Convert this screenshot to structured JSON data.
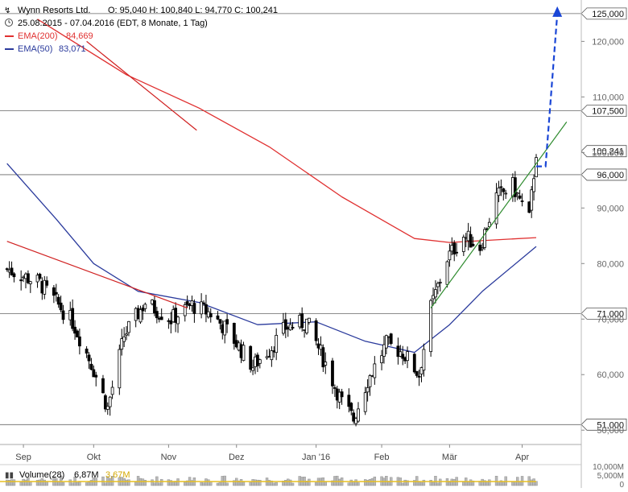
{
  "header": {
    "symbol": "Wynn Resorts Ltd.",
    "ohlc": "O: 95,040  H: 100,840  L: 94,770  C: 100,241",
    "period": "25.08.2015 - 07.04.2016 (EDT, 8 Monate, 1 Tag)",
    "ema200_label": "EMA(200)",
    "ema200_value": "84,669",
    "ema50_label": "EMA(50)",
    "ema50_value": "83,071",
    "volume_label": "Volume(28)",
    "volume_value": "6,87M",
    "volume_avg": "3,67M"
  },
  "colors": {
    "candle": "#000000",
    "ema200": "#e03030",
    "ema50": "#2a3a9c",
    "trend_up": "#2e8b2e",
    "trend_down": "#d02020",
    "forecast": "#1a46d6",
    "hline": "#666666",
    "volume_bar": "#b8b8b8",
    "volume_avg": "#e8c020"
  },
  "chart_data": {
    "type": "candlestick",
    "title": "Wynn Resorts Ltd.",
    "y_range": [
      48,
      126
    ],
    "y_ticks": [
      {
        "value": 50,
        "label": "50,000"
      },
      {
        "value": 60,
        "label": "60,000"
      },
      {
        "value": 70,
        "label": "70,000"
      },
      {
        "value": 80,
        "label": "80,000"
      },
      {
        "value": 90,
        "label": "90,000"
      },
      {
        "value": 100,
        "label": "100,000"
      },
      {
        "value": 110,
        "label": "110,000"
      },
      {
        "value": 120,
        "label": "120,000"
      }
    ],
    "months": [
      {
        "label": "Sep",
        "date": "2015-09-01"
      },
      {
        "label": "Okt",
        "date": "2015-10-01"
      },
      {
        "label": "Nov",
        "date": "2015-11-02"
      },
      {
        "label": "Dez",
        "date": "2015-12-01"
      },
      {
        "label": "Jan '16",
        "date": "2016-01-04"
      },
      {
        "label": "Feb",
        "date": "2016-02-01"
      },
      {
        "label": "Mär",
        "date": "2016-03-01"
      },
      {
        "label": "Apr",
        "date": "2016-04-01"
      }
    ],
    "levels": [
      {
        "value": 125.0,
        "label": "125,000"
      },
      {
        "value": 107.5,
        "label": "107,500"
      },
      {
        "value": 100.241,
        "label": "100,241",
        "type": "last"
      },
      {
        "value": 96.0,
        "label": "96,000"
      },
      {
        "value": 71.0,
        "label": "71,000"
      },
      {
        "value": 51.0,
        "label": "51,000"
      }
    ],
    "close_points": [
      {
        "date": "2015-08-25",
        "close": 79.0
      },
      {
        "date": "2015-09-08",
        "close": 76.5
      },
      {
        "date": "2015-09-22",
        "close": 69.5
      },
      {
        "date": "2015-09-30",
        "close": 62.0
      },
      {
        "date": "2015-10-07",
        "close": 54.0
      },
      {
        "date": "2015-10-14",
        "close": 67.0
      },
      {
        "date": "2015-10-23",
        "close": 73.0
      },
      {
        "date": "2015-11-03",
        "close": 70.0
      },
      {
        "date": "2015-11-12",
        "close": 72.5
      },
      {
        "date": "2015-11-20",
        "close": 71.0
      },
      {
        "date": "2015-11-27",
        "close": 68.0
      },
      {
        "date": "2015-12-08",
        "close": 61.5
      },
      {
        "date": "2015-12-16",
        "close": 65.0
      },
      {
        "date": "2015-12-22",
        "close": 68.5
      },
      {
        "date": "2015-12-31",
        "close": 69.5
      },
      {
        "date": "2016-01-08",
        "close": 62.0
      },
      {
        "date": "2016-01-15",
        "close": 55.0
      },
      {
        "date": "2016-01-20",
        "close": 52.0
      },
      {
        "date": "2016-01-26",
        "close": 59.0
      },
      {
        "date": "2016-02-03",
        "close": 65.5
      },
      {
        "date": "2016-02-10",
        "close": 64.0
      },
      {
        "date": "2016-02-17",
        "close": 60.0
      },
      {
        "date": "2016-02-22",
        "close": 72.0
      },
      {
        "date": "2016-02-29",
        "close": 81.0
      },
      {
        "date": "2016-03-07",
        "close": 85.0
      },
      {
        "date": "2016-03-14",
        "close": 83.0
      },
      {
        "date": "2016-03-21",
        "close": 92.0
      },
      {
        "date": "2016-03-28",
        "close": 94.0
      },
      {
        "date": "2016-04-04",
        "close": 88.0
      },
      {
        "date": "2016-04-07",
        "close": 100.241
      }
    ],
    "ema200": [
      {
        "date": "2015-09-07",
        "value": 124.0
      },
      {
        "date": "2015-10-15",
        "value": 114.0
      },
      {
        "date": "2015-11-15",
        "value": 108.0
      },
      {
        "date": "2015-12-15",
        "value": 101.0
      },
      {
        "date": "2016-01-15",
        "value": 92.0
      },
      {
        "date": "2016-02-15",
        "value": 84.5
      },
      {
        "date": "2016-03-01",
        "value": 83.8
      },
      {
        "date": "2016-04-07",
        "value": 84.669
      }
    ],
    "ema50": [
      {
        "date": "2015-08-25",
        "value": 98.0
      },
      {
        "date": "2015-09-15",
        "value": 88.0
      },
      {
        "date": "2015-10-01",
        "value": 80.0
      },
      {
        "date": "2015-10-20",
        "value": 75.0
      },
      {
        "date": "2015-11-15",
        "value": 73.0
      },
      {
        "date": "2015-12-10",
        "value": 69.0
      },
      {
        "date": "2016-01-04",
        "value": 69.5
      },
      {
        "date": "2016-01-25",
        "value": 66.0
      },
      {
        "date": "2016-02-15",
        "value": 64.0
      },
      {
        "date": "2016-03-01",
        "value": 69.0
      },
      {
        "date": "2016-03-15",
        "value": 75.0
      },
      {
        "date": "2016-04-07",
        "value": 83.071
      }
    ],
    "trendlines": [
      {
        "name": "downtrend",
        "from": {
          "date": "2015-08-25",
          "value": 84.0
        },
        "to": {
          "date": "2015-11-10",
          "value": 72.0
        }
      },
      {
        "name": "downtrend-upper",
        "from": {
          "date": "2015-09-28",
          "value": 120.0
        },
        "to": {
          "date": "2015-11-14",
          "value": 104.0
        }
      },
      {
        "name": "uptrend",
        "from": {
          "date": "2016-02-22",
          "value": 72.0
        },
        "to": {
          "date": "2016-04-20",
          "value": 105.5
        }
      }
    ],
    "forecast": [
      {
        "date": "2016-04-07",
        "value": 97.5
      },
      {
        "date": "2016-04-11",
        "value": 97.5
      },
      {
        "date": "2016-04-16",
        "value": 125.0
      }
    ],
    "volume_ticks": [
      "10,000M",
      "5,000M",
      "0"
    ]
  }
}
